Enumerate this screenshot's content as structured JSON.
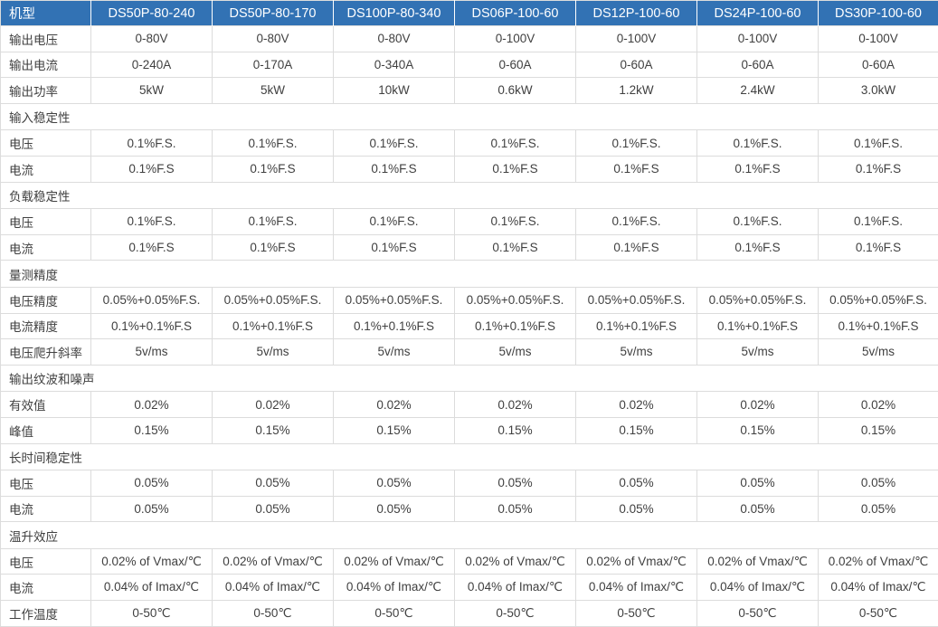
{
  "colors": {
    "header_bg": "#3272b4",
    "header_text": "#ffffff",
    "border": "#dcdcdc",
    "text": "#404040"
  },
  "table": {
    "corner_label": "机型",
    "columns": [
      "DS50P-80-240",
      "DS50P-80-170",
      "DS100P-80-340",
      "DS06P-100-60",
      "DS12P-100-60",
      "DS24P-100-60",
      "DS30P-100-60"
    ],
    "rows": [
      {
        "type": "data",
        "label": "输出电压",
        "values": [
          "0-80V",
          "0-80V",
          "0-80V",
          "0-100V",
          "0-100V",
          "0-100V",
          "0-100V"
        ]
      },
      {
        "type": "data",
        "label": "输出电流",
        "values": [
          "0-240A",
          "0-170A",
          "0-340A",
          "0-60A",
          "0-60A",
          "0-60A",
          "0-60A"
        ]
      },
      {
        "type": "data",
        "label": "输出功率",
        "values": [
          "5kW",
          "5kW",
          "10kW",
          "0.6kW",
          "1.2kW",
          "2.4kW",
          "3.0kW"
        ]
      },
      {
        "type": "section",
        "label": "输入稳定性"
      },
      {
        "type": "data",
        "label": "电压",
        "values": [
          "0.1%F.S.",
          "0.1%F.S.",
          "0.1%F.S.",
          "0.1%F.S.",
          "0.1%F.S.",
          "0.1%F.S.",
          "0.1%F.S."
        ]
      },
      {
        "type": "data",
        "label": "电流",
        "values": [
          "0.1%F.S",
          "0.1%F.S",
          "0.1%F.S",
          "0.1%F.S",
          "0.1%F.S",
          "0.1%F.S",
          "0.1%F.S"
        ]
      },
      {
        "type": "section",
        "label": "负载稳定性"
      },
      {
        "type": "data",
        "label": "电压",
        "values": [
          "0.1%F.S.",
          "0.1%F.S.",
          "0.1%F.S.",
          "0.1%F.S.",
          "0.1%F.S.",
          "0.1%F.S.",
          "0.1%F.S."
        ]
      },
      {
        "type": "data",
        "label": "电流",
        "values": [
          "0.1%F.S",
          "0.1%F.S",
          "0.1%F.S",
          "0.1%F.S",
          "0.1%F.S",
          "0.1%F.S",
          "0.1%F.S"
        ]
      },
      {
        "type": "section",
        "label": "量测精度"
      },
      {
        "type": "data",
        "label": "电压精度",
        "values": [
          "0.05%+0.05%F.S.",
          "0.05%+0.05%F.S.",
          "0.05%+0.05%F.S.",
          "0.05%+0.05%F.S.",
          "0.05%+0.05%F.S.",
          "0.05%+0.05%F.S.",
          "0.05%+0.05%F.S."
        ]
      },
      {
        "type": "data",
        "label": "电流精度",
        "values": [
          "0.1%+0.1%F.S",
          "0.1%+0.1%F.S",
          "0.1%+0.1%F.S",
          "0.1%+0.1%F.S",
          "0.1%+0.1%F.S",
          "0.1%+0.1%F.S",
          "0.1%+0.1%F.S"
        ]
      },
      {
        "type": "data",
        "label": "电压爬升斜率",
        "values": [
          "5v/ms",
          "5v/ms",
          "5v/ms",
          "5v/ms",
          "5v/ms",
          "5v/ms",
          "5v/ms"
        ]
      },
      {
        "type": "section",
        "label": "输出纹波和噪声"
      },
      {
        "type": "data",
        "label": "有效值",
        "values": [
          "0.02%",
          "0.02%",
          "0.02%",
          "0.02%",
          "0.02%",
          "0.02%",
          "0.02%"
        ]
      },
      {
        "type": "data",
        "label": "峰值",
        "values": [
          "0.15%",
          "0.15%",
          "0.15%",
          "0.15%",
          "0.15%",
          "0.15%",
          "0.15%"
        ]
      },
      {
        "type": "section",
        "label": "长时间稳定性"
      },
      {
        "type": "data",
        "label": "电压",
        "values": [
          "0.05%",
          "0.05%",
          "0.05%",
          "0.05%",
          "0.05%",
          "0.05%",
          "0.05%"
        ]
      },
      {
        "type": "data",
        "label": "电流",
        "values": [
          "0.05%",
          "0.05%",
          "0.05%",
          "0.05%",
          "0.05%",
          "0.05%",
          "0.05%"
        ]
      },
      {
        "type": "section",
        "label": "温升效应"
      },
      {
        "type": "data",
        "label": "电压",
        "values": [
          "0.02% of Vmax/℃",
          "0.02% of Vmax/℃",
          "0.02% of Vmax/℃",
          "0.02% of Vmax/℃",
          "0.02% of Vmax/℃",
          "0.02% of Vmax/℃",
          "0.02% of Vmax/℃"
        ]
      },
      {
        "type": "data",
        "label": "电流",
        "values": [
          "0.04% of Imax/℃",
          "0.04% of Imax/℃",
          "0.04% of Imax/℃",
          "0.04% of Imax/℃",
          "0.04% of Imax/℃",
          "0.04% of Imax/℃",
          "0.04% of Imax/℃"
        ]
      },
      {
        "type": "data",
        "label": "工作温度",
        "values": [
          "0-50℃",
          "0-50℃",
          "0-50℃",
          "0-50℃",
          "0-50℃",
          "0-50℃",
          "0-50℃"
        ]
      }
    ]
  }
}
